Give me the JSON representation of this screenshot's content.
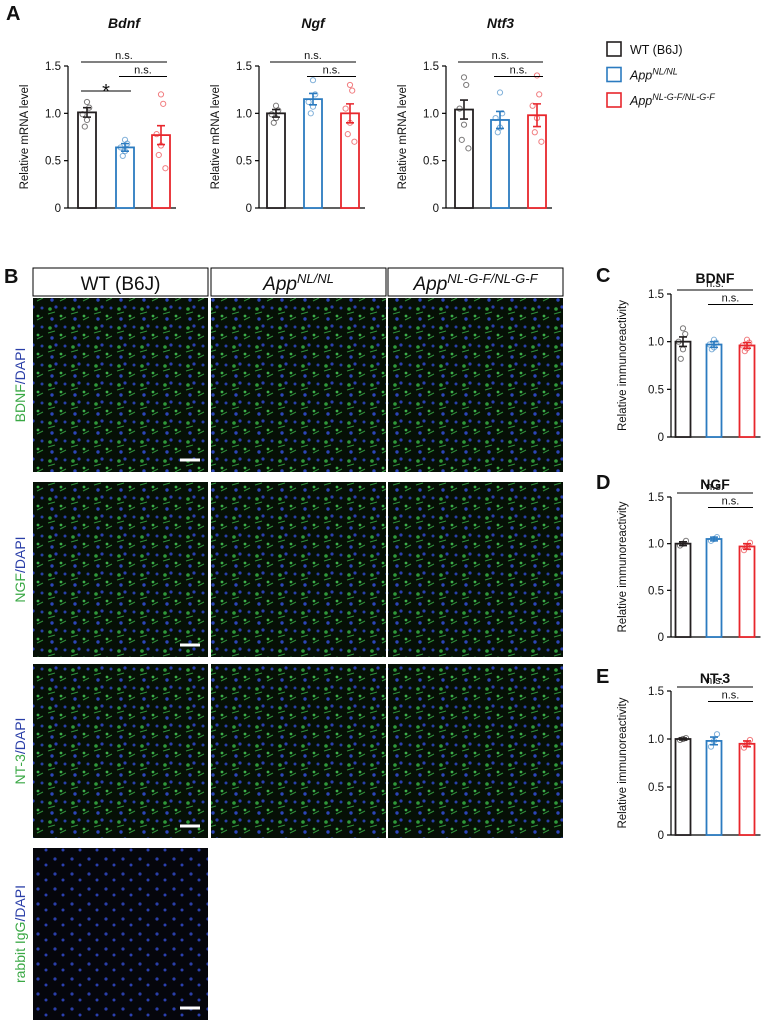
{
  "panel_labels": [
    "A",
    "B",
    "C",
    "D",
    "E"
  ],
  "legend": [
    {
      "label": "WT (B6J)",
      "color": "#231f20"
    },
    {
      "label": "App",
      "superscript": "NL/NL",
      "color": "#2b7bc0"
    },
    {
      "label": "App",
      "superscript": "NL-G-F/NL-G-F",
      "color": "#e8262c"
    }
  ],
  "chart_data": [
    {
      "type": "bar",
      "title": "Bdnf",
      "title_italic": true,
      "ylabel": "Relative mRNA level",
      "ylim": [
        0,
        1.5
      ],
      "yticks": [
        0,
        0.5,
        {
          "value": 1,
          "label": "1.0"
        },
        1.5
      ],
      "values": [
        1.01,
        0.64,
        0.77
      ],
      "errors": [
        0.05,
        0.04,
        0.1
      ],
      "points": [
        [
          1.12,
          1.06,
          0.99,
          0.93,
          0.86
        ],
        [
          0.72,
          0.68,
          0.64,
          0.6,
          0.55
        ],
        [
          1.2,
          1.1,
          0.78,
          0.66,
          0.56,
          0.42
        ]
      ],
      "significance": [
        "n.s.",
        "n.s.",
        "*"
      ]
    },
    {
      "type": "bar",
      "title": "Ngf",
      "title_italic": true,
      "ylabel": "Relative mRNA level",
      "ylim": [
        0,
        1.5
      ],
      "yticks": [
        0,
        0.5,
        {
          "value": 1,
          "label": "1.0"
        },
        1.5
      ],
      "values": [
        1.0,
        1.15,
        1.0
      ],
      "errors": [
        0.04,
        0.06,
        0.1
      ],
      "points": [
        [
          1.08,
          1.03,
          0.99,
          0.95,
          0.9
        ],
        [
          1.35,
          1.2,
          1.12,
          1.07,
          1.0
        ],
        [
          1.3,
          1.24,
          1.05,
          0.9,
          0.78,
          0.7
        ]
      ],
      "significance": [
        "n.s.",
        "n.s."
      ]
    },
    {
      "type": "bar",
      "title": "Ntf3",
      "title_italic": true,
      "ylabel": "Relative mRNA level",
      "ylim": [
        0,
        1.5
      ],
      "yticks": [
        0,
        0.5,
        {
          "value": 1,
          "label": "1.0"
        },
        1.5
      ],
      "values": [
        1.04,
        0.93,
        0.98
      ],
      "errors": [
        0.1,
        0.09,
        0.12
      ],
      "points": [
        [
          1.38,
          1.3,
          1.05,
          0.88,
          0.72,
          0.63
        ],
        [
          1.22,
          1.0,
          0.95,
          0.85,
          0.8
        ],
        [
          1.4,
          1.2,
          1.08,
          0.95,
          0.8,
          0.7
        ]
      ],
      "significance": [
        "n.s.",
        "n.s."
      ]
    },
    {
      "type": "bar",
      "title": "BDNF",
      "title_italic": false,
      "ylabel": "Relative immunoreactivity",
      "ylim": [
        0,
        1.5
      ],
      "yticks": [
        0,
        0.5,
        {
          "value": 1,
          "label": "1.0"
        },
        1.5
      ],
      "values": [
        1.0,
        0.97,
        0.96
      ],
      "errors": [
        0.05,
        0.03,
        0.03
      ],
      "points": [
        [
          1.14,
          1.08,
          1.0,
          0.92,
          0.82
        ],
        [
          1.02,
          0.99,
          0.97,
          0.94,
          0.92
        ],
        [
          1.02,
          0.99,
          0.96,
          0.93,
          0.9
        ]
      ],
      "significance": [
        "n.s.",
        "n.s."
      ]
    },
    {
      "type": "bar",
      "title": "NGF",
      "title_italic": false,
      "ylabel": "Relative immunoreactivity",
      "ylim": [
        0,
        1.5
      ],
      "yticks": [
        0,
        0.5,
        {
          "value": 1,
          "label": "1.0"
        },
        1.5
      ],
      "values": [
        1.0,
        1.05,
        0.97
      ],
      "errors": [
        0.02,
        0.02,
        0.03
      ],
      "points": [
        [
          1.03,
          1.0,
          0.98
        ],
        [
          1.07,
          1.05,
          1.03
        ],
        [
          1.01,
          0.97,
          0.93
        ]
      ],
      "significance": [
        "n.s.",
        "n.s."
      ]
    },
    {
      "type": "bar",
      "title": "NT-3",
      "title_italic": false,
      "ylabel": "Relative immunoreactivity",
      "ylim": [
        0,
        1.5
      ],
      "yticks": [
        0,
        0.5,
        {
          "value": 1,
          "label": "1.0"
        },
        1.5
      ],
      "values": [
        1.0,
        0.98,
        0.95
      ],
      "errors": [
        0.01,
        0.04,
        0.03
      ],
      "points": [
        [
          1.01,
          1.0,
          0.99
        ],
        [
          1.05,
          0.98,
          0.92
        ],
        [
          0.99,
          0.95,
          0.91
        ]
      ],
      "significance": [
        "n.s.",
        "n.s."
      ]
    }
  ],
  "images": {
    "columns": [
      {
        "label": "WT (B6J)"
      },
      {
        "label": "App",
        "superscript": "NL/NL"
      },
      {
        "label": "App",
        "superscript": "NL-G-F/NL-G-F"
      }
    ],
    "rows": [
      {
        "marker": "BDNF",
        "counterstain": "/DAPI"
      },
      {
        "marker": "NGF",
        "counterstain": "/DAPI"
      },
      {
        "marker": "NT-3",
        "counterstain": "/DAPI"
      },
      {
        "marker": "rabbit IgG",
        "counterstain": "/DAPI"
      }
    ]
  }
}
